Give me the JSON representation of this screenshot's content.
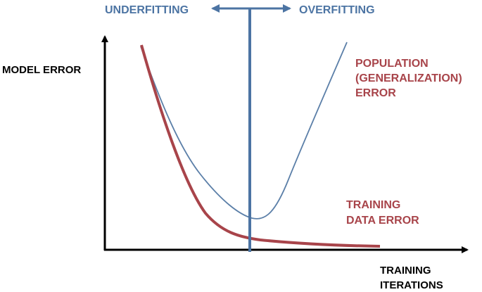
{
  "labels": {
    "underfitting": "UNDERFITTING",
    "overfitting": "OVERFITTING",
    "y_axis": "MODEL ERROR",
    "x_axis_line1": "TRAINING",
    "x_axis_line2": "ITERATIONS",
    "population_line1": "POPULATION",
    "population_line2": "(GENERALIZATION)",
    "population_line3": "ERROR",
    "training_line1": "TRAINING",
    "training_line2": "DATA ERROR"
  },
  "colors": {
    "axis": "#000000",
    "population_curve": "#5b7fa8",
    "training_curve": "#a8444a",
    "divider": "#4c74a3",
    "fit_label": "#4c74a3",
    "curve_label": "#a8444a"
  }
}
